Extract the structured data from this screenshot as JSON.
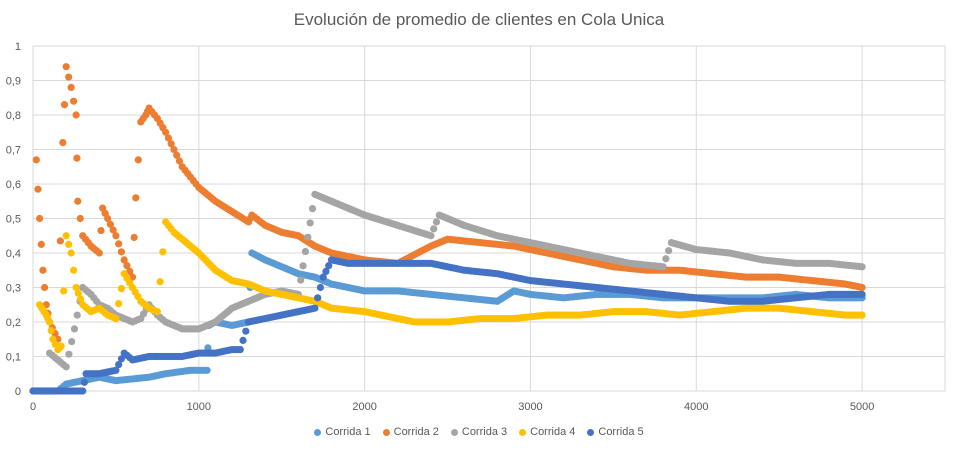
{
  "chart_data": {
    "type": "scatter",
    "title": "Evolución de promedio de clientes en Cola Unica",
    "xlabel": "",
    "ylabel": "",
    "xlim": [
      0,
      5500
    ],
    "ylim": [
      0,
      1
    ],
    "xticks": [
      0,
      1000,
      2000,
      3000,
      4000,
      5000
    ],
    "xtick_labels": [
      "0",
      "1000",
      "2000",
      "3000",
      "4000",
      "5000"
    ],
    "yticks": [
      0,
      0.1,
      0.2,
      0.3,
      0.4,
      0.5,
      0.6,
      0.7,
      0.8,
      0.9,
      1
    ],
    "ytick_labels": [
      "0",
      "0,1",
      "0,2",
      "0,3",
      "0,4",
      "0,5",
      "0,6",
      "0,7",
      "0,8",
      "0,9",
      "1"
    ],
    "grid": true,
    "legend_position": "bottom",
    "series": [
      {
        "name": "Corrida 1",
        "color": "#5B9BD5",
        "x": [
          0,
          150,
          200,
          300,
          400,
          500,
          700,
          800,
          950,
          1050,
          1060,
          1100,
          1200,
          1300,
          1320,
          1400,
          1500,
          1600,
          1700,
          1800,
          2000,
          2200,
          2400,
          2600,
          2800,
          2900,
          3000,
          3200,
          3400,
          3600,
          3800,
          4000,
          4200,
          4400,
          4600,
          4800,
          5000
        ],
        "y": [
          0,
          0,
          0.02,
          0.03,
          0.04,
          0.03,
          0.04,
          0.05,
          0.06,
          0.06,
          0.19,
          0.2,
          0.19,
          0.2,
          0.4,
          0.38,
          0.36,
          0.34,
          0.33,
          0.31,
          0.29,
          0.29,
          0.28,
          0.27,
          0.26,
          0.29,
          0.28,
          0.27,
          0.28,
          0.28,
          0.27,
          0.27,
          0.27,
          0.27,
          0.28,
          0.27,
          0.27
        ]
      },
      {
        "name": "Corrida 2",
        "color": "#ED7D31",
        "x": [
          20,
          40,
          60,
          80,
          100,
          150,
          180,
          200,
          230,
          260,
          270,
          300,
          350,
          400,
          420,
          450,
          500,
          550,
          600,
          620,
          650,
          680,
          700,
          750,
          800,
          850,
          900,
          950,
          1000,
          1100,
          1200,
          1300,
          1320,
          1400,
          1500,
          1600,
          1700,
          1800,
          2000,
          2200,
          2400,
          2500,
          2700,
          2900,
          3100,
          3300,
          3500,
          3700,
          3900,
          4100,
          4300,
          4500,
          4700,
          4900,
          5000
        ],
        "y": [
          0.67,
          0.5,
          0.35,
          0.25,
          0.2,
          0.15,
          0.72,
          0.94,
          0.88,
          0.8,
          0.55,
          0.45,
          0.42,
          0.4,
          0.53,
          0.5,
          0.45,
          0.38,
          0.33,
          0.56,
          0.78,
          0.8,
          0.82,
          0.79,
          0.75,
          0.7,
          0.65,
          0.62,
          0.59,
          0.55,
          0.52,
          0.49,
          0.51,
          0.48,
          0.46,
          0.45,
          0.42,
          0.4,
          0.38,
          0.37,
          0.42,
          0.44,
          0.43,
          0.42,
          0.4,
          0.38,
          0.36,
          0.35,
          0.35,
          0.34,
          0.33,
          0.33,
          0.32,
          0.31,
          0.3
        ]
      },
      {
        "name": "Corrida 3",
        "color": "#A5A5A5",
        "x": [
          100,
          150,
          200,
          250,
          300,
          350,
          400,
          450,
          500,
          550,
          600,
          650,
          700,
          750,
          800,
          850,
          900,
          1000,
          1100,
          1200,
          1300,
          1400,
          1500,
          1600,
          1700,
          1800,
          1900,
          2000,
          2200,
          2400,
          2450,
          2600,
          2800,
          3000,
          3200,
          3400,
          3600,
          3800,
          3850,
          4000,
          4200,
          4400,
          4600,
          4800,
          5000
        ],
        "y": [
          0.11,
          0.09,
          0.07,
          0.18,
          0.3,
          0.28,
          0.25,
          0.24,
          0.22,
          0.21,
          0.2,
          0.21,
          0.25,
          0.22,
          0.2,
          0.19,
          0.18,
          0.18,
          0.2,
          0.24,
          0.26,
          0.28,
          0.29,
          0.28,
          0.57,
          0.55,
          0.53,
          0.51,
          0.48,
          0.45,
          0.51,
          0.48,
          0.45,
          0.43,
          0.41,
          0.39,
          0.37,
          0.36,
          0.43,
          0.41,
          0.4,
          0.38,
          0.37,
          0.37,
          0.36
        ]
      },
      {
        "name": "Corrida 4",
        "color": "#FFC000",
        "x": [
          40,
          80,
          100,
          120,
          150,
          170,
          200,
          230,
          260,
          300,
          350,
          400,
          450,
          500,
          550,
          600,
          650,
          700,
          750,
          800,
          850,
          900,
          1000,
          1100,
          1200,
          1300,
          1400,
          1500,
          1600,
          1700,
          1800,
          2000,
          2200,
          2300,
          2500,
          2700,
          2900,
          3100,
          3300,
          3500,
          3700,
          3900,
          4100,
          4300,
          4500,
          4700,
          4900,
          5000
        ],
        "y": [
          0.25,
          0.22,
          0.2,
          0.15,
          0.12,
          0.13,
          0.45,
          0.4,
          0.3,
          0.25,
          0.23,
          0.24,
          0.22,
          0.21,
          0.34,
          0.3,
          0.26,
          0.24,
          0.23,
          0.49,
          0.46,
          0.44,
          0.4,
          0.35,
          0.32,
          0.31,
          0.29,
          0.28,
          0.27,
          0.26,
          0.24,
          0.23,
          0.21,
          0.2,
          0.2,
          0.21,
          0.21,
          0.22,
          0.22,
          0.23,
          0.23,
          0.22,
          0.23,
          0.24,
          0.24,
          0.23,
          0.22,
          0.22
        ]
      },
      {
        "name": "Corrida 5",
        "color": "#4472C4",
        "x": [
          0,
          100,
          200,
          300,
          320,
          400,
          500,
          550,
          600,
          700,
          800,
          900,
          1000,
          1100,
          1200,
          1250,
          1300,
          1400,
          1500,
          1600,
          1700,
          1750,
          1800,
          1900,
          2000,
          2200,
          2400,
          2600,
          2800,
          3000,
          3200,
          3400,
          3600,
          3800,
          4000,
          4200,
          4400,
          4600,
          4800,
          5000
        ],
        "y": [
          0,
          0,
          0,
          0,
          0.05,
          0.05,
          0.06,
          0.11,
          0.09,
          0.1,
          0.1,
          0.1,
          0.11,
          0.11,
          0.12,
          0.12,
          0.2,
          0.21,
          0.22,
          0.23,
          0.24,
          0.33,
          0.38,
          0.37,
          0.37,
          0.37,
          0.37,
          0.35,
          0.34,
          0.32,
          0.31,
          0.3,
          0.29,
          0.28,
          0.27,
          0.26,
          0.26,
          0.27,
          0.28,
          0.28
        ]
      }
    ]
  }
}
